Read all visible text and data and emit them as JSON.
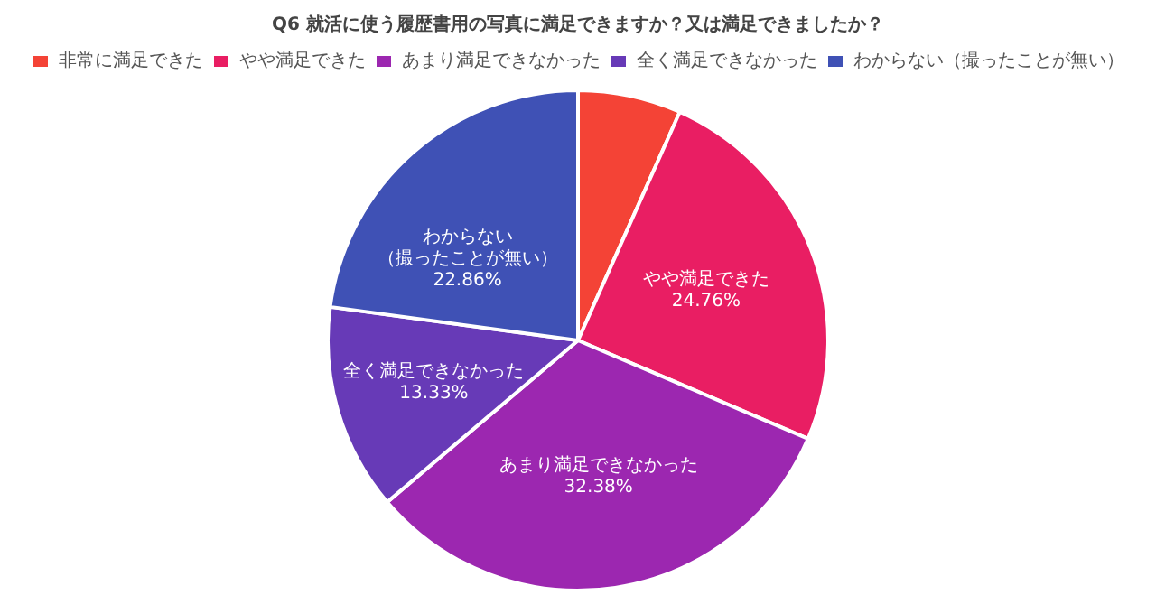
{
  "chart_data": {
    "type": "pie",
    "title": "Q6 就活に使う履歴書用の写真に満足できますか？又は満足できましたか？",
    "categories": [
      "非常に満足できた",
      "やや満足できた",
      "あまり満足できなかった",
      "全く満足できなかった",
      "わからない（撮ったことが無い）"
    ],
    "values": [
      6.67,
      24.76,
      32.38,
      13.33,
      22.86
    ],
    "value_labels": [
      null,
      "24.76%",
      "32.38%",
      "13.33%",
      "22.86%"
    ],
    "colors": [
      "#f44336",
      "#e91e63",
      "#9c27b0",
      "#673ab7",
      "#3f51b5"
    ],
    "legend": "top"
  }
}
